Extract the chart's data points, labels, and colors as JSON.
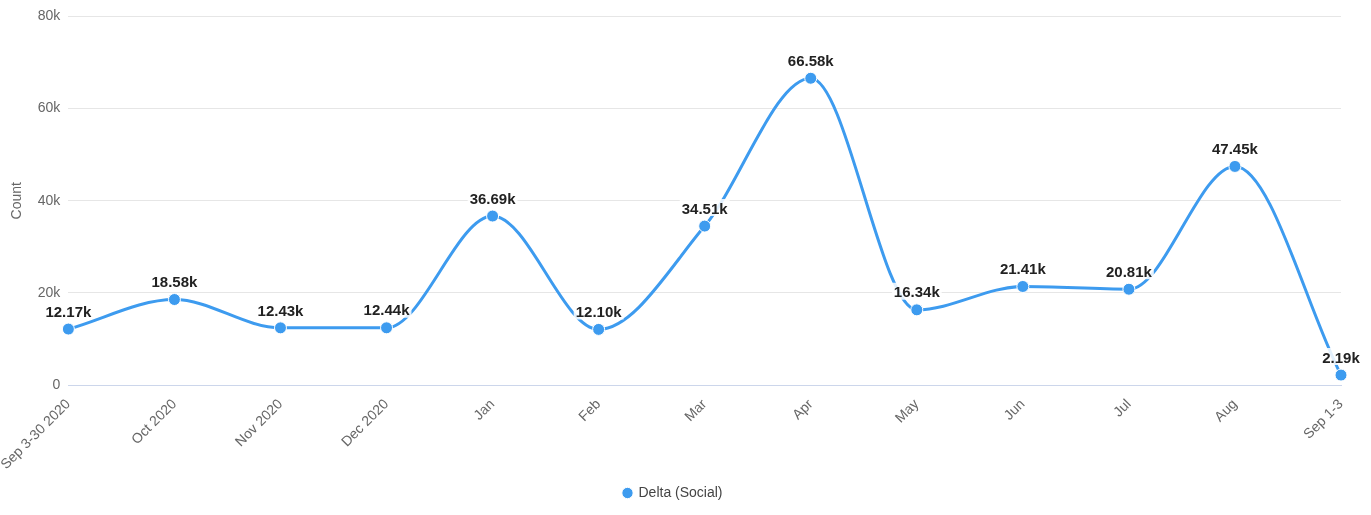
{
  "chart_data": {
    "type": "line",
    "ylabel": "Count",
    "categories": [
      "Sep 3-30 2020",
      "Oct 2020",
      "Nov 2020",
      "Dec 2020",
      "Jan",
      "Feb",
      "Mar",
      "Apr",
      "May",
      "Jun",
      "Jul",
      "Aug",
      "Sep 1-3"
    ],
    "series": [
      {
        "name": "Delta (Social)",
        "color": "#3d9bef",
        "values": [
          12170,
          18580,
          12430,
          12440,
          36690,
          12100,
          34510,
          66580,
          16340,
          21410,
          20810,
          47450,
          2190
        ],
        "value_labels": [
          "12.17k",
          "18.58k",
          "12.43k",
          "12.44k",
          "36.69k",
          "12.10k",
          "34.51k",
          "66.58k",
          "16.34k",
          "21.41k",
          "20.81k",
          "47.45k",
          "2.19k"
        ]
      }
    ],
    "ylim": [
      0,
      80000
    ],
    "yticks": [
      0,
      {
        "value": 20000,
        "label": "20k"
      },
      {
        "value": 40000,
        "label": "40k"
      },
      {
        "value": 60000,
        "label": "60k"
      },
      {
        "value": 80000,
        "label": "80k"
      }
    ],
    "grid": "y",
    "legend": "bottom",
    "marker": "circle",
    "line_style": "solid"
  }
}
